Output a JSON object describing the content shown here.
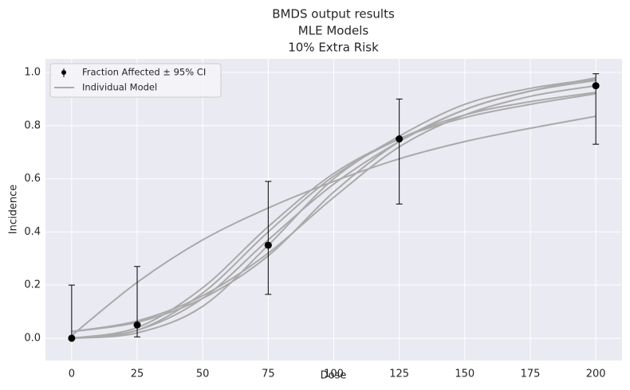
{
  "chart_data": {
    "type": "scatter",
    "title": [
      "BMDS output results",
      "MLE Models",
      "10% Extra Risk"
    ],
    "x_label": "Dose",
    "y_label": "Incidence",
    "xlim": [
      -10,
      210
    ],
    "ylim": [
      -0.084,
      1.051
    ],
    "xticks": [
      0,
      25,
      50,
      75,
      100,
      125,
      150,
      175,
      200
    ],
    "yticks": [
      {
        "value": 0,
        "label": "0.0"
      },
      0.2,
      0.4,
      0.6,
      0.8,
      {
        "value": 1,
        "label": "1.0"
      }
    ],
    "grid": true,
    "legend": "upper left",
    "observed": {
      "name": "Fraction Affected ± 95% CI",
      "color": "#000000",
      "x": [
        0,
        25,
        75,
        125,
        200
      ],
      "values": [
        0,
        0.05,
        0.35,
        0.75,
        0.95
      ],
      "lower": [
        0,
        0.005,
        0.165,
        0.505,
        0.73
      ],
      "upper": [
        0.2,
        0.27,
        0.59,
        0.9,
        0.995
      ]
    },
    "models": {
      "name": "Individual Model",
      "color": "#aaaaaa",
      "x": [
        0,
        25,
        50,
        75,
        100,
        125,
        150,
        175,
        200
      ],
      "curves": [
        [
          0.01,
          0.21,
          0.37,
          0.49,
          0.59,
          0.675,
          0.74,
          0.79,
          0.835
        ],
        [
          0.025,
          0.06,
          0.15,
          0.31,
          0.55,
          0.74,
          0.86,
          0.93,
          0.97
        ],
        [
          0.025,
          0.065,
          0.16,
          0.32,
          0.53,
          0.72,
          0.84,
          0.91,
          0.95
        ],
        [
          0,
          0.04,
          0.19,
          0.42,
          0.62,
          0.75,
          0.83,
          0.88,
          0.92
        ],
        [
          0,
          0.03,
          0.17,
          0.4,
          0.61,
          0.75,
          0.84,
          0.89,
          0.925
        ],
        [
          0,
          0.02,
          0.12,
          0.35,
          0.6,
          0.76,
          0.88,
          0.94,
          0.975
        ],
        [
          0,
          0.03,
          0.15,
          0.37,
          0.58,
          0.74,
          0.86,
          0.93,
          0.98
        ]
      ]
    }
  }
}
